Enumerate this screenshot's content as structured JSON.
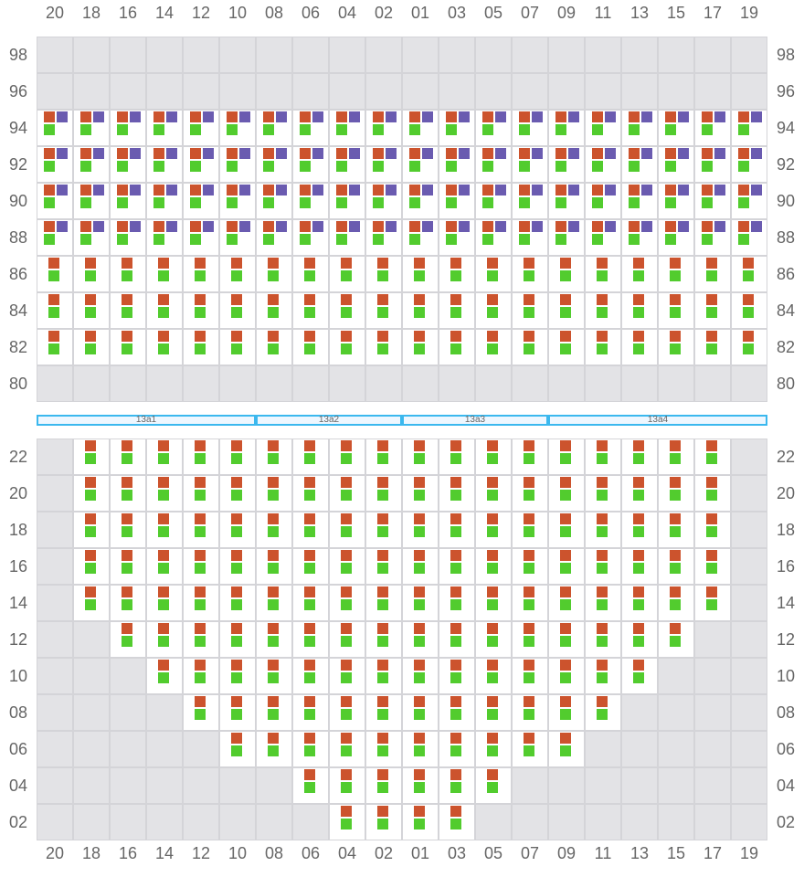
{
  "columns": [
    "20",
    "18",
    "16",
    "14",
    "12",
    "10",
    "08",
    "06",
    "04",
    "02",
    "01",
    "03",
    "05",
    "07",
    "09",
    "11",
    "13",
    "15",
    "17",
    "19"
  ],
  "colors": {
    "orange": "#cc532d",
    "purple": "#6a5bb0",
    "green": "#52cc2e",
    "empty": "#e3e3e6"
  },
  "top_section": {
    "rows": [
      {
        "label": "98",
        "type": "empty"
      },
      {
        "label": "96",
        "type": "empty"
      },
      {
        "label": "94",
        "type": "triple"
      },
      {
        "label": "92",
        "type": "triple"
      },
      {
        "label": "90",
        "type": "triple"
      },
      {
        "label": "88",
        "type": "triple"
      },
      {
        "label": "86",
        "type": "double"
      },
      {
        "label": "84",
        "type": "double"
      },
      {
        "label": "82",
        "type": "double"
      },
      {
        "label": "80",
        "type": "empty"
      }
    ]
  },
  "segments": [
    {
      "label": "13a1",
      "from": "20",
      "to": "10"
    },
    {
      "label": "13a2",
      "from": "08",
      "to": "02"
    },
    {
      "label": "13a3",
      "from": "01",
      "to": "07"
    },
    {
      "label": "13a4",
      "from": "09",
      "to": "19"
    }
  ],
  "bottom_section": {
    "rows": [
      {
        "label": "22",
        "from": "18",
        "to": "17"
      },
      {
        "label": "20",
        "from": "18",
        "to": "17"
      },
      {
        "label": "18",
        "from": "18",
        "to": "17"
      },
      {
        "label": "16",
        "from": "18",
        "to": "17"
      },
      {
        "label": "14",
        "from": "18",
        "to": "17"
      },
      {
        "label": "12",
        "from": "16",
        "to": "15"
      },
      {
        "label": "10",
        "from": "14",
        "to": "13"
      },
      {
        "label": "08",
        "from": "12",
        "to": "11"
      },
      {
        "label": "06",
        "from": "10",
        "to": "09"
      },
      {
        "label": "04",
        "from": "06",
        "to": "05"
      },
      {
        "label": "02",
        "from": "04",
        "to": "03"
      }
    ]
  }
}
